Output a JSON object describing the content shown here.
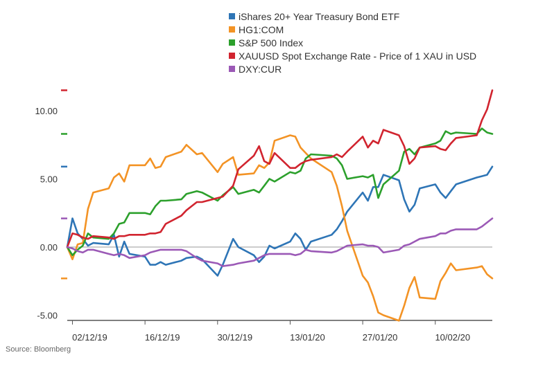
{
  "source": "Source: Bloomberg",
  "chart_data": {
    "type": "line",
    "x": [
      "2019-12-01",
      "2019-12-02",
      "2019-12-03",
      "2019-12-04",
      "2019-12-05",
      "2019-12-06",
      "2019-12-09",
      "2019-12-10",
      "2019-12-11",
      "2019-12-12",
      "2019-12-13",
      "2019-12-16",
      "2019-12-17",
      "2019-12-18",
      "2019-12-19",
      "2019-12-20",
      "2019-12-23",
      "2019-12-24",
      "2019-12-26",
      "2019-12-27",
      "2019-12-30",
      "2019-12-31",
      "2020-01-02",
      "2020-01-03",
      "2020-01-06",
      "2020-01-07",
      "2020-01-08",
      "2020-01-09",
      "2020-01-10",
      "2020-01-13",
      "2020-01-14",
      "2020-01-15",
      "2020-01-16",
      "2020-01-17",
      "2020-01-21",
      "2020-01-22",
      "2020-01-23",
      "2020-01-24",
      "2020-01-27",
      "2020-01-28",
      "2020-01-29",
      "2020-01-30",
      "2020-01-31",
      "2020-02-03",
      "2020-02-04",
      "2020-02-05",
      "2020-02-06",
      "2020-02-07",
      "2020-02-10",
      "2020-02-11",
      "2020-02-12",
      "2020-02-13",
      "2020-02-14",
      "2020-02-18",
      "2020-02-19",
      "2020-02-20",
      "2020-02-21"
    ],
    "ylim": [
      -5,
      10
    ],
    "yticks": [
      "10.00",
      "5.00",
      "0.00",
      "-5.00"
    ],
    "ytick_values": [
      10,
      5,
      0,
      -5
    ],
    "xticks": [
      "02/12/19",
      "16/12/19",
      "30/12/19",
      "13/01/20",
      "27/01/20",
      "10/02/20"
    ],
    "xtick_values": [
      "2019-12-02",
      "2019-12-16",
      "2019-12-30",
      "2020-01-13",
      "2020-01-27",
      "2020-02-10"
    ],
    "grid": false,
    "legend_position": "top",
    "series": [
      {
        "name": "iShares 20+ Year Treasury Bond ETF",
        "color": "#2e75b6",
        "values": [
          0,
          2.1,
          1,
          0.6,
          0.1,
          0.3,
          0.2,
          0.9,
          -0.7,
          0.4,
          -0.5,
          -0.7,
          -1.3,
          -1.3,
          -1.1,
          -1.3,
          -1.0,
          -0.8,
          -0.7,
          -0.9,
          -2.1,
          -1.3,
          0.6,
          0,
          -0.6,
          -1.1,
          -0.7,
          0.1,
          -0.1,
          0.4,
          1.0,
          0.6,
          -0.2,
          0.4,
          0.9,
          1.3,
          1.9,
          2.6,
          4.0,
          3.4,
          4.4,
          4.4,
          5.3,
          4.9,
          3.5,
          2.6,
          3.1,
          4.3,
          4.6,
          4.0,
          3.6,
          4.1,
          4.6,
          5.1,
          5.2,
          5.3,
          5.9
        ]
      },
      {
        "name": "HG1:COM",
        "color": "#f39325",
        "values": [
          0,
          -0.9,
          0.2,
          0.3,
          2.8,
          4.0,
          4.3,
          5.1,
          5.4,
          4.8,
          6.0,
          6.0,
          6.5,
          5.8,
          5.9,
          6.6,
          7.0,
          7.5,
          6.8,
          6.9,
          5.5,
          6.1,
          6.6,
          5.3,
          5.4,
          6.0,
          5.8,
          6.2,
          7.8,
          8.2,
          8.1,
          7.3,
          6.9,
          6.5,
          5.5,
          4.5,
          3.0,
          1.2,
          -2.1,
          -2.6,
          -3.6,
          -4.8,
          -5.0,
          -5.4,
          -4.3,
          -3.0,
          -2.2,
          -3.7,
          -3.8,
          -2.5,
          -1.9,
          -1.2,
          -1.7,
          -1.5,
          -1.4,
          -2.0,
          -2.3
        ]
      },
      {
        "name": "S&P 500 Index",
        "color": "#2ca02c",
        "values": [
          0,
          -0.6,
          -0.2,
          0.1,
          1.0,
          0.7,
          0.6,
          1.0,
          1.7,
          1.8,
          2.5,
          2.5,
          2.4,
          3.0,
          3.4,
          3.4,
          3.5,
          3.9,
          4.1,
          4.0,
          3.4,
          3.8,
          4.4,
          3.9,
          4.2,
          4.0,
          4.5,
          5.0,
          4.8,
          5.5,
          5.4,
          5.6,
          6.5,
          6.8,
          6.7,
          6.5,
          6.0,
          5.0,
          5.2,
          5.1,
          5.3,
          3.6,
          4.6,
          5.6,
          7.0,
          7.2,
          6.8,
          7.3,
          7.6,
          7.8,
          8.5,
          8.3,
          8.4,
          8.3,
          8.7,
          8.4,
          8.3
        ]
      },
      {
        "name": "XAUUSD Spot Exchange Rate - Price of 1 XAU in USD",
        "color": "#d1242f",
        "values": [
          0,
          1.0,
          0.9,
          0.7,
          0.6,
          0.8,
          0.7,
          0.6,
          0.8,
          0.8,
          0.9,
          0.9,
          1.0,
          1.0,
          1.1,
          1.7,
          2.3,
          2.7,
          3.3,
          3.3,
          3.6,
          3.7,
          4.5,
          5.7,
          6.7,
          7.4,
          6.3,
          6.1,
          6.9,
          5.8,
          5.8,
          6.1,
          6.3,
          6.4,
          6.6,
          6.8,
          6.6,
          7.0,
          8.1,
          7.3,
          7.8,
          7.6,
          8.6,
          8.2,
          7.4,
          6.1,
          6.5,
          7.3,
          7.4,
          7.2,
          7.1,
          7.6,
          8.0,
          8.2,
          9.3,
          10.1,
          11.5
        ]
      },
      {
        "name": "DXY:CUR",
        "color": "#9b59b6",
        "values": [
          0,
          -0.1,
          -0.3,
          -0.4,
          -0.2,
          -0.2,
          -0.5,
          -0.6,
          -0.5,
          -0.6,
          -0.8,
          -0.6,
          -0.4,
          -0.3,
          -0.2,
          -0.2,
          -0.2,
          -0.3,
          -0.8,
          -1.0,
          -1.2,
          -1.4,
          -1.3,
          -1.2,
          -1.0,
          -0.8,
          -0.6,
          -0.5,
          -0.5,
          -0.5,
          -0.6,
          -0.5,
          -0.2,
          -0.3,
          -0.4,
          -0.3,
          -0.1,
          0.1,
          0.2,
          0.1,
          0.1,
          0.0,
          -0.4,
          -0.2,
          0.1,
          0.2,
          0.4,
          0.6,
          0.8,
          1.0,
          1.0,
          1.2,
          1.3,
          1.3,
          1.5,
          1.8,
          2.1
        ]
      }
    ]
  }
}
